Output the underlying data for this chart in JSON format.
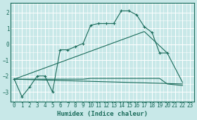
{
  "xlabel": "Humidex (Indice chaleur)",
  "bg_color": "#c8e8e8",
  "grid_color": "#ffffff",
  "line_color": "#1a6b5a",
  "xlim": [
    -0.5,
    23.5
  ],
  "ylim": [
    -3.6,
    2.6
  ],
  "yticks": [
    -3,
    -2,
    -1,
    0,
    1,
    2
  ],
  "xticks": [
    0,
    1,
    2,
    3,
    4,
    5,
    6,
    7,
    8,
    9,
    10,
    11,
    12,
    13,
    14,
    15,
    16,
    17,
    18,
    19,
    20,
    21,
    22,
    23
  ],
  "series": [
    {
      "x": [
        0,
        1,
        2,
        3,
        4,
        5,
        6,
        7,
        8,
        9,
        10,
        11,
        12,
        13,
        14,
        15,
        16,
        17,
        18,
        19,
        20
      ],
      "y": [
        -2.2,
        -3.3,
        -2.7,
        -2.0,
        -2.0,
        -3.0,
        -0.35,
        -0.35,
        -0.15,
        0.05,
        1.2,
        1.3,
        1.3,
        1.3,
        2.1,
        2.1,
        1.85,
        1.1,
        0.75,
        -0.55,
        -0.55
      ],
      "marker": true
    },
    {
      "x": [
        0,
        22
      ],
      "y": [
        -2.2,
        -2.5
      ],
      "marker": false
    },
    {
      "x": [
        0,
        17,
        20,
        22
      ],
      "y": [
        -2.2,
        0.8,
        -0.55,
        -2.4
      ],
      "marker": false
    },
    {
      "x": [
        0,
        9,
        10,
        19,
        20,
        22
      ],
      "y": [
        -2.2,
        -2.2,
        -2.15,
        -2.15,
        -2.5,
        -2.6
      ],
      "marker": false
    }
  ]
}
